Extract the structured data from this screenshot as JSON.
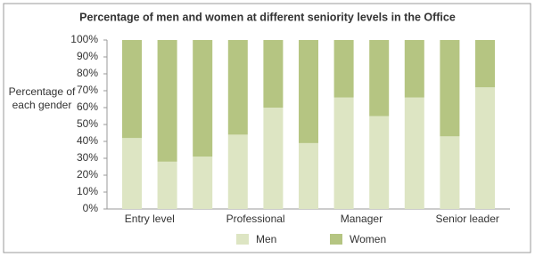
{
  "chart_data": {
    "type": "stacked-bar",
    "title": "Percentage of men and women at different seniority levels in the Office",
    "ylabel": "Percentage of each gender",
    "categories": [
      "Entry level",
      null,
      null,
      "Professional",
      null,
      null,
      "Manager",
      null,
      null,
      "Senior leader",
      null
    ],
    "series": [
      {
        "name": "Men",
        "color": "#dde5c3",
        "values": [
          42,
          28,
          31,
          44,
          60,
          39,
          66,
          55,
          66,
          43,
          72
        ]
      },
      {
        "name": "Women",
        "color": "#b5c582",
        "values": [
          58,
          72,
          69,
          56,
          40,
          61,
          34,
          45,
          34,
          57,
          28
        ]
      }
    ],
    "ylim": [
      0,
      100
    ],
    "yticks": [
      {
        "value": 0,
        "label": "0%"
      },
      {
        "value": 10,
        "label": "10%"
      },
      {
        "value": 20,
        "label": "20%"
      },
      {
        "value": 30,
        "label": "30%"
      },
      {
        "value": 40,
        "label": "40%"
      },
      {
        "value": 50,
        "label": "50%"
      },
      {
        "value": 60,
        "label": "60%"
      },
      {
        "value": 70,
        "label": "70%"
      },
      {
        "value": 80,
        "label": "80%"
      },
      {
        "value": 90,
        "label": "90%"
      },
      {
        "value": 100,
        "label": "100%"
      }
    ],
    "grid": false
  }
}
